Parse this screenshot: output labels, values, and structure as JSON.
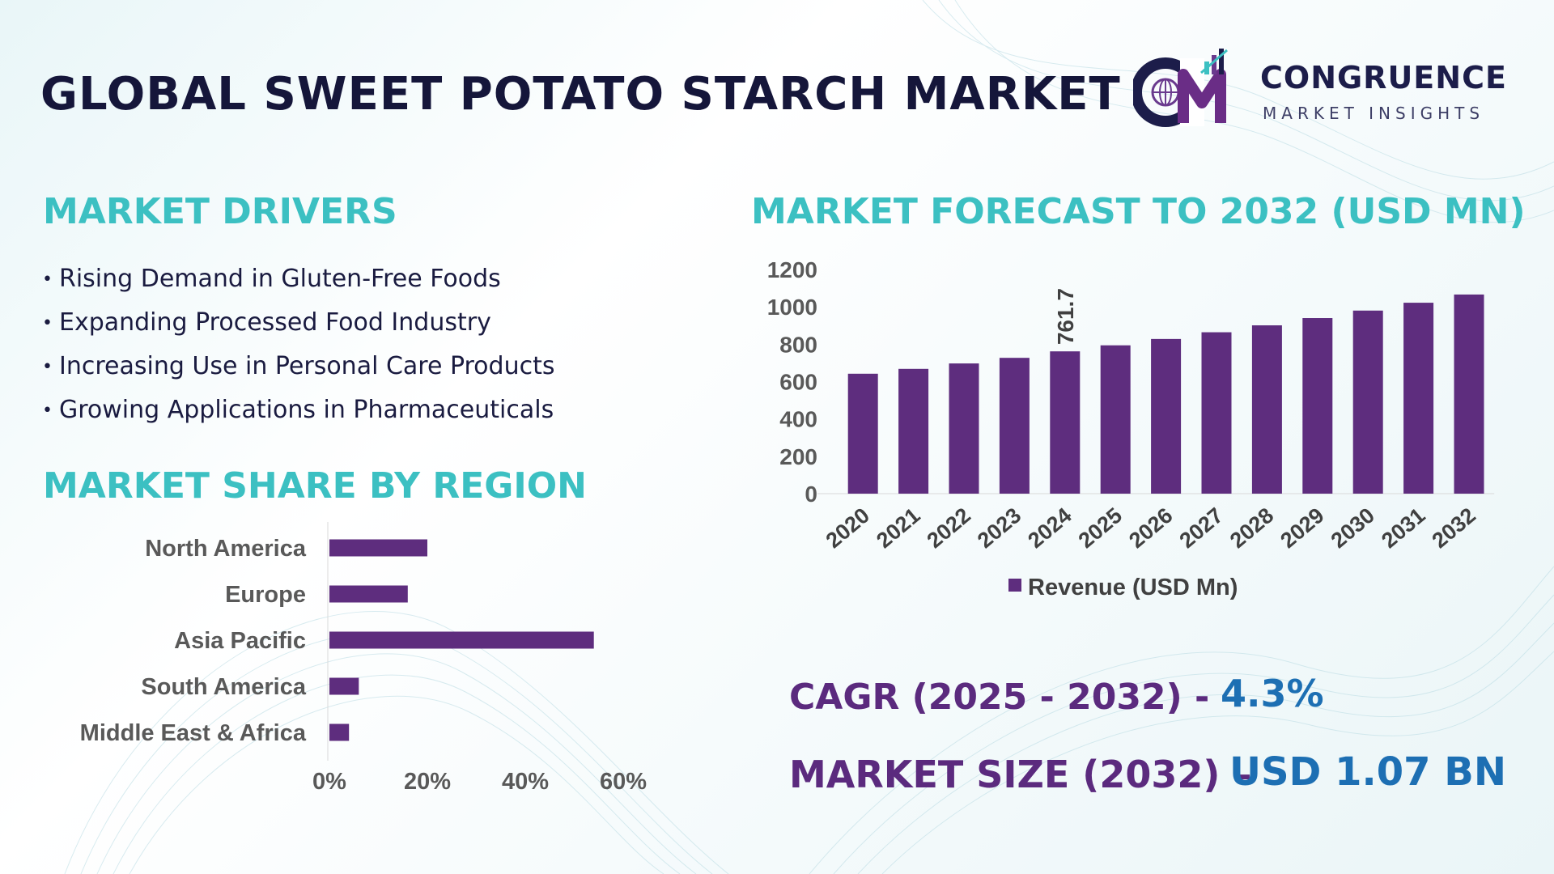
{
  "page": {
    "title": "GLOBAL SWEET POTATO STARCH MARKET",
    "logo": {
      "name": "CONGRUENCE",
      "tagline": "MARKET INSIGHTS"
    }
  },
  "drivers": {
    "heading": "MARKET DRIVERS",
    "items": [
      "Rising Demand in Gluten-Free Foods",
      "Expanding Processed Food Industry",
      "Increasing Use in Personal Care Products",
      "Growing Applications in Pharmaceuticals"
    ]
  },
  "region": {
    "heading": "MARKET SHARE BY REGION"
  },
  "forecast": {
    "heading": "MARKET FORECAST TO 2032 (USD MN)"
  },
  "stats": {
    "cagr_label": "CAGR (2025 - 2032) -",
    "cagr_value": "4.3%",
    "size_label": "MARKET SIZE (2032) –",
    "size_value": "USD 1.07 BN"
  },
  "colors": {
    "bar": "#5e2d7e",
    "heading": "#3cc0c2",
    "title": "#15163a",
    "stat_label": "#5b2a7e",
    "stat_value": "#1d6fb3"
  },
  "chart_data": [
    {
      "type": "bar",
      "orientation": "vertical",
      "categories": [
        "2020",
        "2021",
        "2022",
        "2023",
        "2024",
        "2025",
        "2026",
        "2027",
        "2028",
        "2029",
        "2030",
        "2031",
        "2032"
      ],
      "series": [
        {
          "name": "Revenue (USD Mn)",
          "values": [
            642,
            668,
            697,
            727,
            761.7,
            794,
            828,
            864,
            901,
            940,
            980,
            1022,
            1066
          ]
        }
      ],
      "data_labels": [
        {
          "category": "2024",
          "text": "761.7"
        }
      ],
      "yticks": [
        "0",
        "200",
        "400",
        "600",
        "800",
        "1000",
        "1200"
      ],
      "ylim": [
        0,
        1200
      ],
      "legend": "bottom",
      "grid": false
    },
    {
      "type": "bar",
      "orientation": "horizontal",
      "categories": [
        "North America",
        "Europe",
        "Asia Pacific",
        "South America",
        "Middle East & Africa"
      ],
      "values": [
        20,
        16,
        54,
        6,
        4
      ],
      "xticks": [
        "0%",
        "20%",
        "40%",
        "60%"
      ],
      "xlim": [
        0,
        60
      ],
      "grid": false
    }
  ]
}
